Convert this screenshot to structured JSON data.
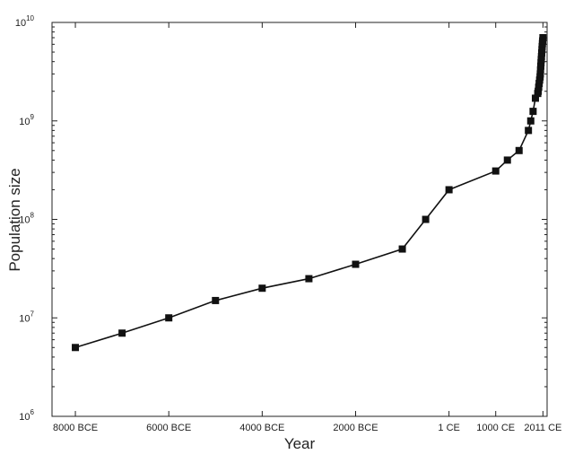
{
  "chart_data": {
    "type": "line",
    "xlabel": "Year",
    "ylabel": "Population size",
    "yscale": "log",
    "ylim": [
      1000000,
      10000000000
    ],
    "xlim": [
      -8500,
      2100
    ],
    "grid": false,
    "y_ticks": [
      {
        "value": 1000000,
        "base": "10",
        "exp": "6"
      },
      {
        "value": 10000000,
        "base": "10",
        "exp": "7"
      },
      {
        "value": 100000000,
        "base": "10",
        "exp": "8"
      },
      {
        "value": 1000000000,
        "base": "10",
        "exp": "9"
      },
      {
        "value": 10000000000,
        "base": "10",
        "exp": "10"
      }
    ],
    "x_ticks": [
      {
        "value": -8000,
        "label": "8000 BCE"
      },
      {
        "value": -6000,
        "label": "6000 BCE"
      },
      {
        "value": -4000,
        "label": "4000 BCE"
      },
      {
        "value": -2000,
        "label": "2000 BCE"
      },
      {
        "value": 0,
        "label": "1 CE"
      },
      {
        "value": 1000,
        "label": "1000 CE"
      },
      {
        "value": 2011,
        "label": "2011 CE"
      }
    ],
    "series": [
      {
        "x": [
          -8000,
          -7000,
          -6000,
          -5000,
          -4000,
          -3000,
          -2000,
          -1000,
          -500,
          0,
          1000,
          1250,
          1500,
          1700,
          1750,
          1800,
          1850,
          1900,
          1910,
          1920,
          1930,
          1940,
          1950,
          1955,
          1960,
          1965,
          1970,
          1975,
          1980,
          1985,
          1990,
          1995,
          2000,
          2005,
          2011
        ],
        "y": [
          5000000,
          7000000,
          10000000,
          15000000,
          20000000,
          25000000,
          35000000,
          50000000,
          100000000,
          200000000,
          310000000,
          400000000,
          500000000,
          800000000,
          1000000000,
          1250000000,
          1700000000,
          1900000000,
          2000000000,
          2200000000,
          2400000000,
          2600000000,
          2800000000,
          3000000000,
          3300000000,
          3600000000,
          3900000000,
          4200000000,
          4500000000,
          4900000000,
          5300000000,
          5700000000,
          6100000000,
          6500000000,
          7000000000
        ]
      }
    ]
  }
}
